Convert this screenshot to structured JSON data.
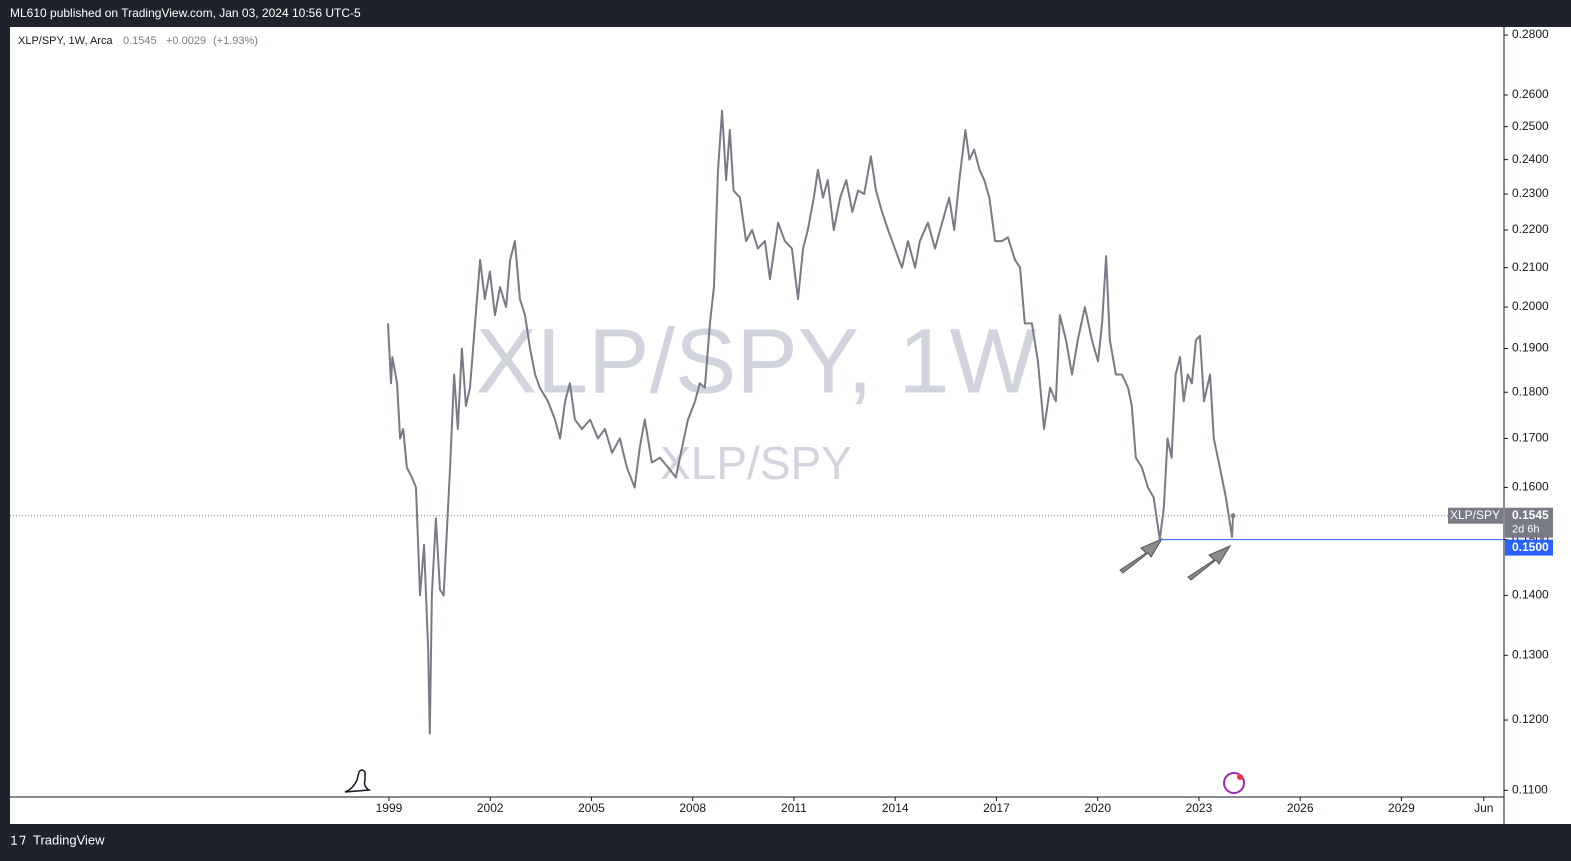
{
  "header": {
    "publisher": "ML610 published on TradingView.com, Jan 03, 2024 10:56 UTC-5"
  },
  "chart_data": {
    "type": "line",
    "legend": {
      "symbol": "XLP/SPY, 1W, Arca",
      "last": "0.1545",
      "change": "+0.0029",
      "change_pct": "(+1.93%)"
    },
    "watermark": "XLP/SPY, 1W",
    "watermark_sub": "XLP/SPY",
    "x": [
      1998.97,
      1999.06,
      1999.1,
      1999.24,
      1999.33,
      1999.42,
      1999.53,
      1999.68,
      1999.8,
      1999.92,
      2000.04,
      2000.16,
      2000.21,
      2000.27,
      2000.39,
      2000.51,
      2000.62,
      2000.81,
      2000.93,
      2001.04,
      2001.16,
      2001.28,
      2001.4,
      2001.55,
      2001.7,
      2001.84,
      2001.99,
      2002.14,
      2002.29,
      2002.47,
      2002.59,
      2002.73,
      2002.88,
      2003.03,
      2003.18,
      2003.33,
      2003.47,
      2003.71,
      2003.92,
      2004.07,
      2004.22,
      2004.36,
      2004.51,
      2004.72,
      2004.96,
      2005.19,
      2005.4,
      2005.61,
      2005.84,
      2006.05,
      2006.28,
      2006.43,
      2006.58,
      2006.79,
      2007.03,
      2007.27,
      2007.5,
      2007.68,
      2007.86,
      2008.07,
      2008.21,
      2008.36,
      2008.51,
      2008.63,
      2008.75,
      2008.87,
      2008.99,
      2009.1,
      2009.21,
      2009.4,
      2009.58,
      2009.76,
      2009.93,
      2010.14,
      2010.29,
      2010.53,
      2010.73,
      2010.94,
      2011.12,
      2011.27,
      2011.41,
      2011.59,
      2011.71,
      2011.86,
      2012.0,
      2012.18,
      2012.37,
      2012.55,
      2012.73,
      2012.9,
      2013.08,
      2013.28,
      2013.43,
      2013.61,
      2013.79,
      2013.99,
      2014.2,
      2014.38,
      2014.59,
      2014.73,
      2014.97,
      2015.18,
      2015.36,
      2015.6,
      2015.75,
      2015.9,
      2016.08,
      2016.2,
      2016.34,
      2016.5,
      2016.64,
      2016.79,
      2016.96,
      2017.16,
      2017.34,
      2017.55,
      2017.7,
      2017.84,
      2018.05,
      2018.23,
      2018.41,
      2018.59,
      2018.76,
      2018.88,
      2019.06,
      2019.24,
      2019.41,
      2019.62,
      2019.83,
      2020.01,
      2020.13,
      2020.25,
      2020.36,
      2020.54,
      2020.72,
      2020.9,
      2021.01,
      2021.13,
      2021.31,
      2021.49,
      2021.66,
      2021.84,
      2021.96,
      2022.07,
      2022.19,
      2022.31,
      2022.44,
      2022.55,
      2022.67,
      2022.79,
      2022.91,
      2023.03,
      2023.15,
      2023.33,
      2023.44,
      2023.56,
      2023.68,
      2023.8,
      2023.92,
      2023.98,
      2024.01
    ],
    "series": [
      {
        "name": "XLP/SPY",
        "color": "#787b86",
        "values": [
          0.196,
          0.182,
          0.188,
          0.182,
          0.17,
          0.172,
          0.164,
          0.162,
          0.16,
          0.14,
          0.149,
          0.131,
          0.118,
          0.14,
          0.154,
          0.141,
          0.14,
          0.164,
          0.184,
          0.172,
          0.19,
          0.177,
          0.181,
          0.196,
          0.212,
          0.202,
          0.209,
          0.198,
          0.205,
          0.2,
          0.212,
          0.217,
          0.202,
          0.198,
          0.19,
          0.184,
          0.181,
          0.178,
          0.174,
          0.17,
          0.178,
          0.182,
          0.174,
          0.172,
          0.174,
          0.17,
          0.172,
          0.167,
          0.17,
          0.164,
          0.16,
          0.168,
          0.174,
          0.165,
          0.166,
          0.164,
          0.162,
          0.168,
          0.174,
          0.178,
          0.182,
          0.181,
          0.196,
          0.205,
          0.237,
          0.255,
          0.234,
          0.249,
          0.231,
          0.229,
          0.217,
          0.22,
          0.215,
          0.217,
          0.207,
          0.222,
          0.217,
          0.215,
          0.202,
          0.215,
          0.22,
          0.229,
          0.237,
          0.229,
          0.234,
          0.22,
          0.229,
          0.234,
          0.225,
          0.231,
          0.23,
          0.241,
          0.231,
          0.225,
          0.22,
          0.215,
          0.21,
          0.217,
          0.21,
          0.217,
          0.222,
          0.215,
          0.221,
          0.229,
          0.22,
          0.234,
          0.249,
          0.24,
          0.243,
          0.237,
          0.234,
          0.229,
          0.217,
          0.217,
          0.218,
          0.212,
          0.21,
          0.196,
          0.196,
          0.187,
          0.172,
          0.181,
          0.178,
          0.198,
          0.192,
          0.184,
          0.192,
          0.2,
          0.192,
          0.187,
          0.196,
          0.213,
          0.192,
          0.184,
          0.184,
          0.181,
          0.177,
          0.166,
          0.164,
          0.16,
          0.158,
          0.15,
          0.156,
          0.17,
          0.166,
          0.184,
          0.188,
          0.178,
          0.184,
          0.182,
          0.192,
          0.193,
          0.178,
          0.184,
          0.17,
          0.166,
          0.162,
          0.158,
          0.153,
          0.1505,
          0.1545
        ]
      }
    ],
    "xlim": [
      1987.77,
      2032.04
    ],
    "ylim": [
      0.1091,
      0.2828
    ],
    "log_y": true,
    "xticks": [
      1999,
      2002,
      2005,
      2008,
      2011,
      2014,
      2017,
      2020,
      2023,
      2026,
      2029,
      {
        "value": 2031.44,
        "label": "Jun"
      }
    ],
    "yticks": [
      {
        "value": 0.11,
        "label": "0.1100"
      },
      {
        "value": 0.12,
        "label": "0.1200"
      },
      {
        "value": 0.13,
        "label": "0.1300"
      },
      {
        "value": 0.14,
        "label": "0.1400"
      },
      {
        "value": 0.15,
        "label": "0.1500"
      },
      {
        "value": 0.16,
        "label": "0.1600"
      },
      {
        "value": 0.17,
        "label": "0.1700"
      },
      {
        "value": 0.18,
        "label": "0.1800"
      },
      {
        "value": 0.19,
        "label": "0.1900"
      },
      {
        "value": 0.2,
        "label": "0.2000"
      },
      {
        "value": 0.21,
        "label": "0.2100"
      },
      {
        "value": 0.22,
        "label": "0.2200"
      },
      {
        "value": 0.23,
        "label": "0.2300"
      },
      {
        "value": 0.24,
        "label": "0.2400"
      },
      {
        "value": 0.25,
        "label": "0.2500"
      },
      {
        "value": 0.26,
        "label": "0.2600"
      },
      {
        "value": 0.28,
        "label": "0.2800"
      }
    ],
    "last_price": {
      "value": 0.1545,
      "label": "0.1545",
      "countdown": "2d 6h",
      "color": "#787b86"
    },
    "hline": {
      "value": 0.15,
      "label": "0.1500",
      "color": "#2962ff",
      "from": 2021.84
    }
  },
  "footer": {
    "brand": "TradingView"
  }
}
